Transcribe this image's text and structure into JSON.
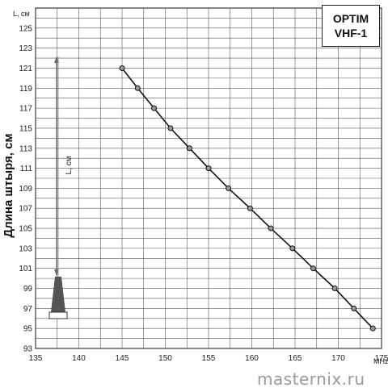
{
  "model": {
    "line1": "OPTIM",
    "line2": "VHF-1"
  },
  "watermark": "masternix.ru",
  "antenna_label": "L, см",
  "chart_data": {
    "type": "line",
    "title": "",
    "xlabel": "MHz",
    "ylabel": "Длина штыря, см",
    "y_unit": "L, см",
    "xlim": [
      135,
      175
    ],
    "ylim": [
      93,
      127
    ],
    "x_ticks": [
      135,
      140,
      145,
      150,
      155,
      160,
      165,
      170,
      175
    ],
    "y_ticks": [
      93,
      95,
      97,
      99,
      101,
      103,
      105,
      107,
      109,
      111,
      113,
      115,
      117,
      119,
      121,
      123,
      125
    ],
    "grid": true,
    "series": [
      {
        "x": [
          145,
          146.8,
          148.7,
          150.6,
          152.8,
          155,
          157.3,
          159.8,
          162.2,
          164.7,
          167.1,
          169.6,
          171.8,
          174
        ],
        "y": [
          121,
          119,
          117,
          115,
          113,
          111,
          109,
          107,
          105,
          103,
          101,
          99,
          97,
          95
        ]
      }
    ],
    "colors": {
      "line": "#111111",
      "marker_fill": "#9a9a9a",
      "grid": "#555555"
    }
  }
}
